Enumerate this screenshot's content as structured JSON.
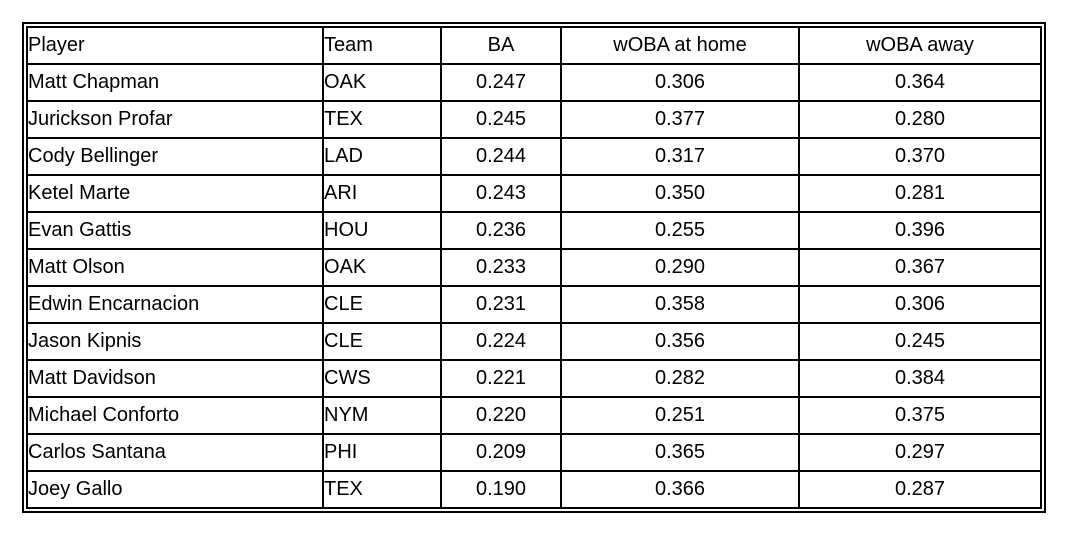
{
  "table": {
    "name": "player-woba-stats",
    "columns": [
      {
        "label": "Player",
        "align": "left"
      },
      {
        "label": "Team",
        "align": "left"
      },
      {
        "label": "BA",
        "align": "center"
      },
      {
        "label": "wOBA at home",
        "align": "center"
      },
      {
        "label": "wOBA away",
        "align": "center"
      }
    ],
    "rows": [
      {
        "player": "Matt Chapman",
        "team": "OAK",
        "ba": "0.247",
        "woba_home": "0.306",
        "woba_away": "0.364"
      },
      {
        "player": "Jurickson Profar",
        "team": "TEX",
        "ba": "0.245",
        "woba_home": "0.377",
        "woba_away": "0.280"
      },
      {
        "player": "Cody Bellinger",
        "team": "LAD",
        "ba": "0.244",
        "woba_home": "0.317",
        "woba_away": "0.370"
      },
      {
        "player": "Ketel Marte",
        "team": "ARI",
        "ba": "0.243",
        "woba_home": "0.350",
        "woba_away": "0.281"
      },
      {
        "player": "Evan Gattis",
        "team": "HOU",
        "ba": "0.236",
        "woba_home": "0.255",
        "woba_away": "0.396"
      },
      {
        "player": "Matt Olson",
        "team": "OAK",
        "ba": "0.233",
        "woba_home": "0.290",
        "woba_away": "0.367"
      },
      {
        "player": "Edwin Encarnacion",
        "team": "CLE",
        "ba": "0.231",
        "woba_home": "0.358",
        "woba_away": "0.306"
      },
      {
        "player": "Jason Kipnis",
        "team": "CLE",
        "ba": "0.224",
        "woba_home": "0.356",
        "woba_away": "0.245"
      },
      {
        "player": "Matt Davidson",
        "team": "CWS",
        "ba": "0.221",
        "woba_home": "0.282",
        "woba_away": "0.384"
      },
      {
        "player": "Michael Conforto",
        "team": "NYM",
        "ba": "0.220",
        "woba_home": "0.251",
        "woba_away": "0.375"
      },
      {
        "player": "Carlos Santana",
        "team": "PHI",
        "ba": "0.209",
        "woba_home": "0.365",
        "woba_away": "0.297"
      },
      {
        "player": "Joey Gallo",
        "team": "TEX",
        "ba": "0.190",
        "woba_home": "0.366",
        "woba_away": "0.287"
      }
    ]
  },
  "colors": {
    "border": "#000000",
    "text": "#000000",
    "background": "#ffffff"
  }
}
